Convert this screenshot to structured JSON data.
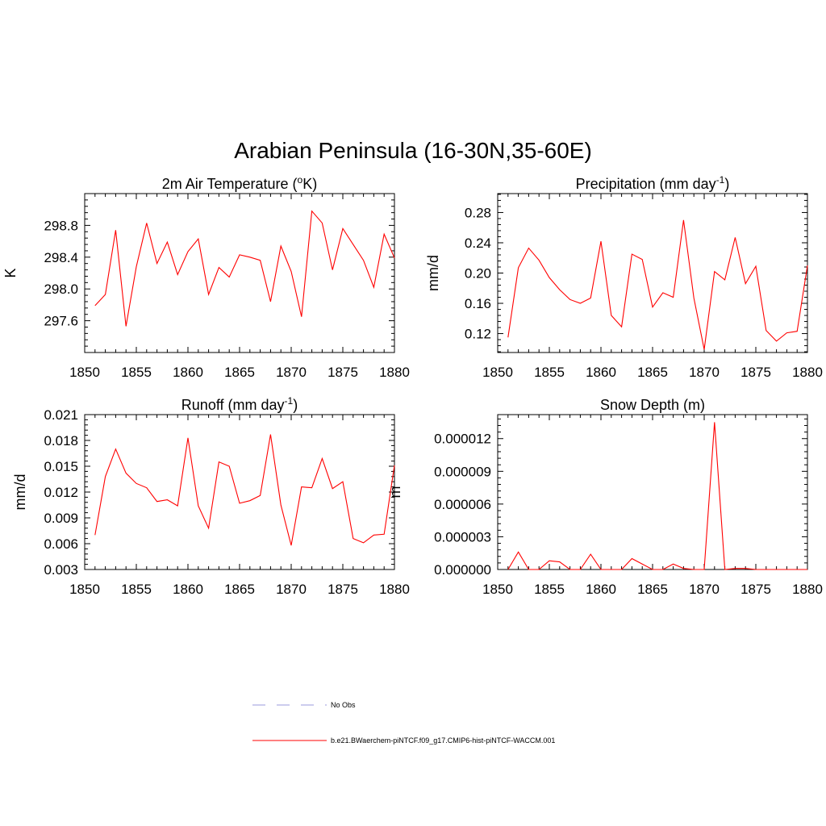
{
  "figure": {
    "title": "Arabian Peninsula (16-30N,35-60E)"
  },
  "legend": {
    "items": [
      {
        "label": "No Obs",
        "color": "#9999dd",
        "style": "dashed"
      },
      {
        "label": "b.e21.BWaerchem-piNTCF.f09_g17.CMIP6-hist-piNTCF-WACCM.001",
        "color": "#ff0000",
        "style": "solid"
      }
    ]
  },
  "chart_data": [
    {
      "type": "line",
      "title": "2m Air Temperature",
      "title_unit": "(oK)",
      "title_sup": "o",
      "ylabel": "K",
      "xlim": [
        1850,
        1880
      ],
      "ylim": [
        297.2,
        299.2
      ],
      "xticks": [
        "1850",
        "1855",
        "1860",
        "1865",
        "1870",
        "1875",
        "1880"
      ],
      "yticks": [
        "297.6",
        "298.0",
        "298.4",
        "298.8"
      ],
      "series": [
        {
          "color": "#ff0000",
          "x": [
            1851,
            1852,
            1853,
            1854,
            1855,
            1856,
            1857,
            1858,
            1859,
            1860,
            1861,
            1862,
            1863,
            1864,
            1865,
            1866,
            1867,
            1868,
            1869,
            1870,
            1871,
            1872,
            1873,
            1874,
            1875,
            1876,
            1877,
            1878,
            1879,
            1880
          ],
          "values": [
            297.79,
            297.93,
            298.74,
            297.53,
            298.28,
            298.83,
            298.32,
            298.59,
            298.18,
            298.47,
            298.63,
            297.93,
            298.27,
            298.15,
            298.43,
            298.4,
            298.36,
            297.84,
            298.54,
            298.22,
            297.65,
            298.98,
            298.83,
            298.24,
            298.76,
            298.56,
            298.36,
            298.02,
            298.69,
            298.39
          ]
        }
      ]
    },
    {
      "type": "line",
      "title": "Precipitation",
      "title_unit": "(mm day-1)",
      "title_sup": "-1",
      "ylabel": "mm/d",
      "xlim": [
        1850,
        1880
      ],
      "ylim": [
        0.095,
        0.305
      ],
      "xticks": [
        "1850",
        "1855",
        "1860",
        "1865",
        "1870",
        "1875",
        "1880"
      ],
      "yticks": [
        "0.12",
        "0.16",
        "0.20",
        "0.24",
        "0.28"
      ],
      "series": [
        {
          "color": "#ff0000",
          "x": [
            1851,
            1852,
            1853,
            1854,
            1855,
            1856,
            1857,
            1858,
            1859,
            1860,
            1861,
            1862,
            1863,
            1864,
            1865,
            1866,
            1867,
            1868,
            1869,
            1870,
            1871,
            1872,
            1873,
            1874,
            1875,
            1876,
            1877,
            1878,
            1879,
            1880
          ],
          "values": [
            0.115,
            0.207,
            0.233,
            0.217,
            0.194,
            0.178,
            0.165,
            0.16,
            0.167,
            0.242,
            0.144,
            0.129,
            0.225,
            0.218,
            0.155,
            0.174,
            0.168,
            0.27,
            0.167,
            0.099,
            0.202,
            0.191,
            0.247,
            0.186,
            0.209,
            0.124,
            0.11,
            0.121,
            0.123,
            0.21
          ]
        }
      ]
    },
    {
      "type": "line",
      "title": "Runoff",
      "title_unit": "(mm day-1)",
      "title_sup": "-1",
      "ylabel": "mm/d",
      "xlim": [
        1850,
        1880
      ],
      "ylim": [
        0.003,
        0.021
      ],
      "xticks": [
        "1850",
        "1855",
        "1860",
        "1865",
        "1870",
        "1875",
        "1880"
      ],
      "yticks": [
        "0.003",
        "0.006",
        "0.009",
        "0.012",
        "0.015",
        "0.018",
        "0.021"
      ],
      "series": [
        {
          "color": "#ff0000",
          "x": [
            1851,
            1852,
            1853,
            1854,
            1855,
            1856,
            1857,
            1858,
            1859,
            1860,
            1861,
            1862,
            1863,
            1864,
            1865,
            1866,
            1867,
            1868,
            1869,
            1870,
            1871,
            1872,
            1873,
            1874,
            1875,
            1876,
            1877,
            1878,
            1879,
            1880
          ],
          "values": [
            0.007,
            0.0138,
            0.017,
            0.0142,
            0.013,
            0.0125,
            0.0109,
            0.0111,
            0.0104,
            0.0183,
            0.0104,
            0.0078,
            0.0155,
            0.015,
            0.0107,
            0.011,
            0.0116,
            0.0187,
            0.0105,
            0.0058,
            0.0126,
            0.0125,
            0.0159,
            0.0124,
            0.0132,
            0.0066,
            0.0061,
            0.007,
            0.0071,
            0.0151
          ]
        }
      ]
    },
    {
      "type": "line",
      "title": "Snow Depth (m)",
      "title_unit": "",
      "title_sup": "",
      "ylabel": "m",
      "xlim": [
        1850,
        1880
      ],
      "ylim": [
        0.0,
        1.42e-05
      ],
      "xticks": [
        "1850",
        "1855",
        "1860",
        "1865",
        "1870",
        "1875",
        "1880"
      ],
      "yticks": [
        "0.000000",
        "0.000003",
        "0.000006",
        "0.000009",
        "0.000012"
      ],
      "series": [
        {
          "color": "#ff0000",
          "x": [
            1851,
            1852,
            1853,
            1854,
            1855,
            1856,
            1857,
            1858,
            1859,
            1860,
            1861,
            1862,
            1863,
            1864,
            1865,
            1866,
            1867,
            1868,
            1869,
            1870,
            1871,
            1872,
            1873,
            1874,
            1875,
            1876,
            1877,
            1878,
            1879,
            1880
          ],
          "values": [
            0.0,
            1.6e-06,
            0.0,
            0.0,
            8e-07,
            7e-07,
            0.0,
            0.0,
            1.4e-06,
            0.0,
            0.0,
            0.0,
            1e-06,
            5e-07,
            0.0,
            0.0,
            5e-07,
            1e-07,
            0.0,
            0.0,
            1.35e-05,
            0.0,
            1e-07,
            1e-07,
            0.0,
            0.0,
            0.0,
            0.0,
            0.0,
            0.0
          ]
        }
      ]
    }
  ]
}
